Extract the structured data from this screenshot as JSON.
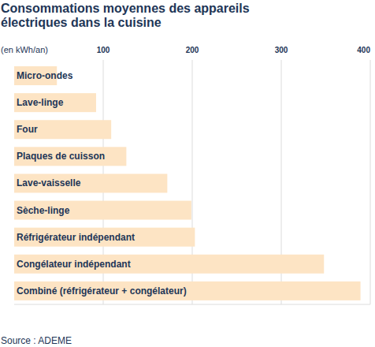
{
  "chart_data": {
    "type": "bar",
    "orientation": "horizontal",
    "title": "Consommations moyennes des appareils électriques dans la cuisine",
    "x_label": "(en kWh/an)",
    "source": "Source : ADEME",
    "categories": [
      "Micro-ondes",
      "Lave-linge",
      "Four",
      "Plaques de cuisson",
      "Lave-vaisselle",
      "Sèche-linge",
      "Réfrigérateur indépendant",
      "Congélateur indépendant",
      "Combiné (réfrigérateur + congélateur)"
    ],
    "values": [
      48,
      92,
      109,
      126,
      172,
      199,
      203,
      348,
      389
    ],
    "color": "#fde4c4",
    "xlim": [
      0,
      400
    ],
    "xticks": [
      100,
      200,
      300,
      400
    ],
    "grid": true
  }
}
